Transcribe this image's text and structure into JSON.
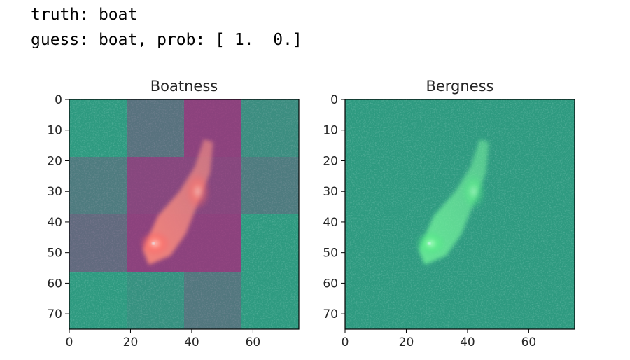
{
  "output": {
    "truth_label": "truth:",
    "truth_value": "boat",
    "guess_label": "guess:",
    "guess_value": "boat,",
    "prob_label": "prob:",
    "prob_value": "[ 1.  0.]"
  },
  "chart_data": [
    {
      "type": "heatmap",
      "title": "Boatness",
      "xlim": [
        0,
        75
      ],
      "ylim": [
        75,
        0
      ],
      "xticks": [
        0,
        20,
        40,
        60
      ],
      "yticks": [
        0,
        10,
        20,
        30,
        40,
        50,
        60,
        70
      ],
      "grid": false,
      "base_color": "#2e9a80",
      "highlight_color": "#b0207c",
      "overlay_blocks": {
        "block_size": 18.75,
        "rows": [
          [
            0.0,
            0.45,
            1.0,
            0.15
          ],
          [
            0.35,
            0.95,
            0.95,
            0.35
          ],
          [
            0.55,
            1.0,
            1.0,
            0.0
          ],
          [
            0.0,
            0.1,
            0.4,
            0.0
          ]
        ]
      }
    },
    {
      "type": "heatmap",
      "title": "Bergness",
      "xlim": [
        0,
        75
      ],
      "ylim": [
        75,
        0
      ],
      "xticks": [
        0,
        20,
        40,
        60
      ],
      "yticks": [
        0,
        10,
        20,
        30,
        40,
        50,
        60,
        70
      ],
      "grid": false,
      "base_color": "#2e9a80",
      "highlight_color": "#3fe28a"
    }
  ]
}
